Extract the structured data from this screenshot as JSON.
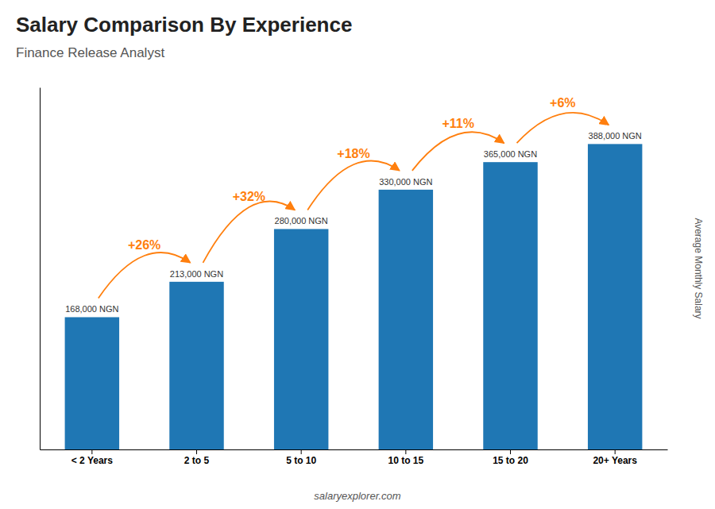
{
  "chart_data": {
    "type": "bar",
    "title": "Salary Comparison By Experience",
    "subtitle": "Finance Release Analyst",
    "ylabel": "Average Monthly Salary",
    "categories": [
      "< 2 Years",
      "2 to 5",
      "5 to 10",
      "10 to 15",
      "15 to 20",
      "20+ Years"
    ],
    "values": [
      168000,
      213000,
      280000,
      330000,
      365000,
      388000
    ],
    "value_labels": [
      "168,000 NGN",
      "213,000 NGN",
      "280,000 NGN",
      "330,000 NGN",
      "365,000 NGN",
      "388,000 NGN"
    ],
    "data_labels": true,
    "ylim": [
      0,
      460000
    ],
    "yticks": [],
    "tick_labels": "x",
    "grid": false,
    "annotations": [
      {
        "text": "+26%",
        "from": "< 2 Years",
        "to": "2 to 5"
      },
      {
        "text": "+32%",
        "from": "2 to 5",
        "to": "5 to 10"
      },
      {
        "text": "+18%",
        "from": "5 to 10",
        "to": "10 to 15"
      },
      {
        "text": "+11%",
        "from": "10 to 15",
        "to": "15 to 20"
      },
      {
        "text": "+6%",
        "from": "15 to 20",
        "to": "20+ Years"
      },
      {
        "text": "salaryexplorer.com"
      }
    ]
  }
}
